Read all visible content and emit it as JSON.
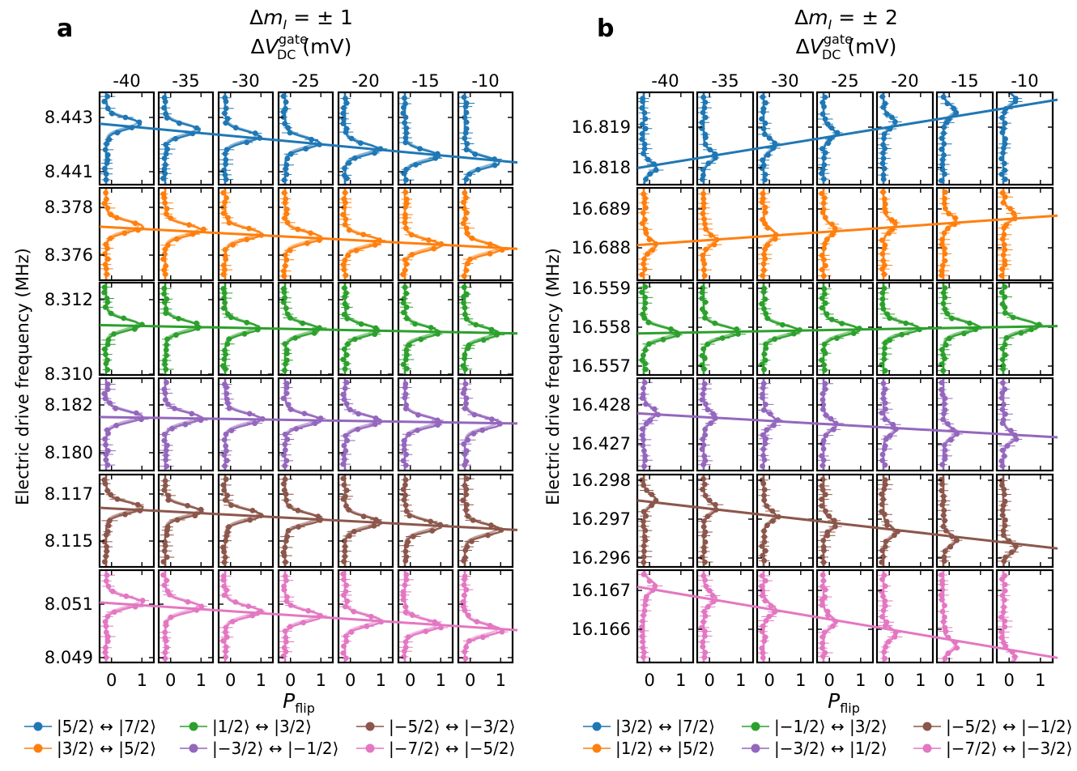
{
  "panels": [
    {
      "label": "a",
      "title_line1": "Δm_I = ± 1",
      "title_main": "ΔV",
      "title_sup": "gate",
      "title_sub": "DC",
      "title_unit": " (mV)",
      "ylabel": "Electric drive frequency (MHz)",
      "xlabel_main": "P",
      "xlabel_sub": "flip",
      "columns": [
        "-40",
        "-35",
        "-30",
        "-25",
        "-20",
        "-15",
        "-10"
      ],
      "xticks": [
        "0",
        "1"
      ],
      "rows": [
        {
          "series": "|5/2⟩ ↔ |7/2⟩",
          "color": "#1f77b4",
          "ticks": [
            "8.443",
            "8.441"
          ],
          "fit_start": 0.34,
          "fit_end": 0.76,
          "peak_start": 0.34,
          "peak_end": 0.76,
          "fill": 0.85
        },
        {
          "series": "|3/2⟩ ↔ |5/2⟩",
          "color": "#ff7f0e",
          "ticks": [
            "8.378",
            "8.376"
          ],
          "fit_start": 0.42,
          "fit_end": 0.66,
          "peak_start": 0.42,
          "peak_end": 0.66,
          "fill": 0.9
        },
        {
          "series": "|1/2⟩ ↔ |3/2⟩",
          "color": "#2ca02c",
          "ticks": [
            "8.312",
            "8.310"
          ],
          "fit_start": 0.46,
          "fit_end": 0.55,
          "peak_start": 0.46,
          "peak_end": 0.55,
          "fill": 0.85
        },
        {
          "series": "|−3/2⟩ ↔ |−1/2⟩",
          "color": "#9467bd",
          "ticks": [
            "8.182",
            "8.180"
          ],
          "fit_start": 0.42,
          "fit_end": 0.49,
          "peak_start": 0.42,
          "peak_end": 0.49,
          "fill": 0.9
        },
        {
          "series": "|−5/2⟩ ↔ |−3/2⟩",
          "color": "#8c564b",
          "ticks": [
            "8.117",
            "8.115"
          ],
          "fit_start": 0.36,
          "fit_end": 0.6,
          "peak_start": 0.36,
          "peak_end": 0.6,
          "fill": 0.9
        },
        {
          "series": "|−7/2⟩ ↔ |−5/2⟩",
          "color": "#e377c2",
          "ticks": [
            "8.051",
            "8.049"
          ],
          "fit_start": 0.35,
          "fit_end": 0.65,
          "peak_start": 0.35,
          "peak_end": 0.65,
          "fill": 0.9
        }
      ],
      "legend": [
        {
          "label": "|5/2⟩ ↔ |7/2⟩",
          "color": "#1f77b4"
        },
        {
          "label": "|1/2⟩ ↔ |3/2⟩",
          "color": "#2ca02c"
        },
        {
          "label": "|−5/2⟩ ↔ |−3/2⟩",
          "color": "#8c564b"
        },
        {
          "label": "|3/2⟩ ↔ |5/2⟩",
          "color": "#ff7f0e"
        },
        {
          "label": "|−3/2⟩ ↔ |−1/2⟩",
          "color": "#9467bd"
        },
        {
          "label": "|−7/2⟩ ↔ |−5/2⟩",
          "color": "#e377c2"
        }
      ]
    },
    {
      "label": "b",
      "title_line1": "Δm_I = ± 2",
      "title_main": "ΔV",
      "title_sup": "gate",
      "title_sub": "DC",
      "title_unit": " (mV)",
      "ylabel": "Electric drive frequency (MHz)",
      "xlabel_main": "P",
      "xlabel_sub": "flip",
      "columns": [
        "-40",
        "-35",
        "-30",
        "-25",
        "-20",
        "-15",
        "-10"
      ],
      "xticks": [
        "0",
        "1"
      ],
      "rows": [
        {
          "series": "|3/2⟩ ↔ |7/2⟩",
          "color": "#1f77b4",
          "ticks": [
            "16.819",
            "16.818"
          ],
          "fit_start": 0.82,
          "fit_end": 0.08,
          "peak_start": 0.82,
          "peak_end": 0.08,
          "fill": 0.3
        },
        {
          "series": "|1/2⟩ ↔ |5/2⟩",
          "color": "#ff7f0e",
          "ticks": [
            "16.689",
            "16.688"
          ],
          "fit_start": 0.62,
          "fit_end": 0.3,
          "peak_start": 0.62,
          "peak_end": 0.3,
          "fill": 0.3
        },
        {
          "series": "|−1/2⟩ ↔ |3/2⟩",
          "color": "#2ca02c",
          "ticks": [
            "16.559",
            "16.558",
            "16.557"
          ],
          "fit_start": 0.55,
          "fit_end": 0.47,
          "peak_start": 0.55,
          "peak_end": 0.47,
          "fill": 0.85
        },
        {
          "series": "|−3/2⟩ ↔ |1/2⟩",
          "color": "#9467bd",
          "ticks": [
            "16.428",
            "16.427"
          ],
          "fit_start": 0.38,
          "fit_end": 0.64,
          "peak_start": 0.38,
          "peak_end": 0.64,
          "fill": 0.3
        },
        {
          "series": "|−5/2⟩ ↔ |−1/2⟩",
          "color": "#8c564b",
          "ticks": [
            "16.298",
            "16.297",
            "16.296"
          ],
          "fit_start": 0.28,
          "fit_end": 0.8,
          "peak_start": 0.28,
          "peak_end": 0.8,
          "fill": 0.3
        },
        {
          "series": "|−7/2⟩ ↔ |−3/2⟩",
          "color": "#e377c2",
          "ticks": [
            "16.167",
            "16.166"
          ],
          "fit_start": 0.18,
          "fit_end": 0.95,
          "peak_start": 0.18,
          "peak_end": 0.95,
          "fill": 0.3
        }
      ],
      "legend": [
        {
          "label": "|3/2⟩ ↔ |7/2⟩",
          "color": "#1f77b4"
        },
        {
          "label": "|−1/2⟩ ↔ |3/2⟩",
          "color": "#2ca02c"
        },
        {
          "label": "|−5/2⟩ ↔ |−1/2⟩",
          "color": "#8c564b"
        },
        {
          "label": "|1/2⟩ ↔ |5/2⟩",
          "color": "#ff7f0e"
        },
        {
          "label": "|−3/2⟩ ↔ |1/2⟩",
          "color": "#9467bd"
        },
        {
          "label": "|−7/2⟩ ↔ |−3/2⟩",
          "color": "#e377c2"
        }
      ]
    }
  ]
}
